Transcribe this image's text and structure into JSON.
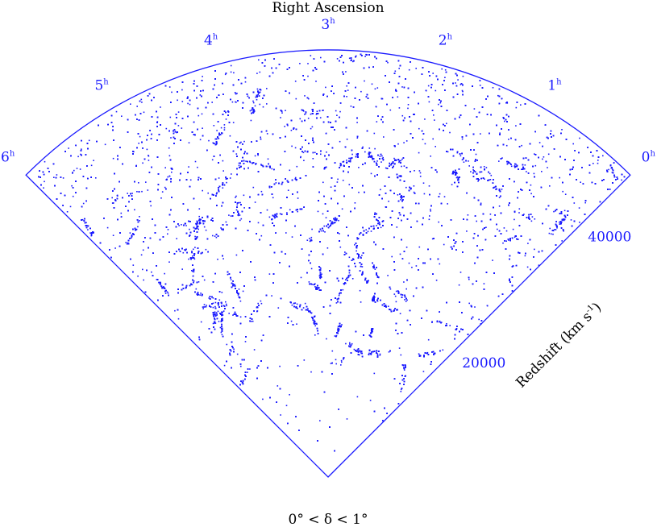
{
  "chart_data": {
    "type": "scatter",
    "subtype": "redshift-wedge",
    "title": "Right Ascension",
    "angular_axis": {
      "range_hours": [
        0,
        6
      ],
      "ticks": [
        {
          "value": 0,
          "label": "0h"
        },
        {
          "value": 1,
          "label": "1h"
        },
        {
          "value": 2,
          "label": "2h"
        },
        {
          "value": 3,
          "label": "3h"
        },
        {
          "value": 4,
          "label": "4h"
        },
        {
          "value": 5,
          "label": "5h"
        },
        {
          "value": 6,
          "label": "6h"
        }
      ]
    },
    "radial_axis": {
      "label": "Redshift (km s-1)",
      "range": [
        0,
        48000
      ],
      "ticks": [
        {
          "value": 20000,
          "label": "20000"
        },
        {
          "value": 40000,
          "label": "40000"
        }
      ]
    },
    "caption": "0° < δ < 1°",
    "point_color": "#1a1aff",
    "density_note": "galaxy positions; density increases with redshift, filamentary large-scale structure"
  }
}
